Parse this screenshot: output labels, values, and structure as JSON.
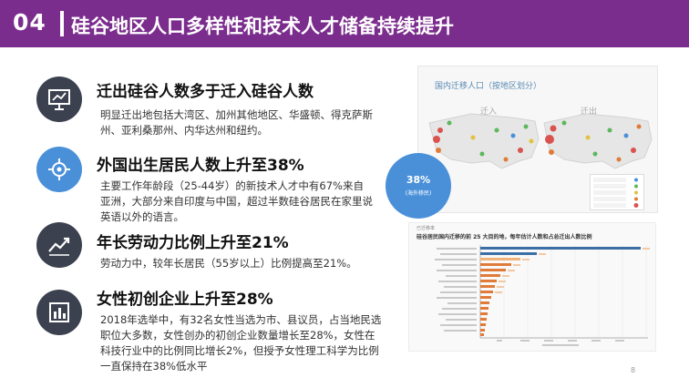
{
  "title": {
    "number": "04",
    "text": "硅谷地区人口多样性和技术人才储备持续提升"
  },
  "points": [
    {
      "icon": "presentation-chart-icon",
      "heading": "迁出硅谷人数多于迁入硅谷人数",
      "body": "明显迁出地包括大湾区、加州其他地区、华盛顿、得克萨斯州、亚利桑那州、内华达州和纽约。"
    },
    {
      "icon": "brain-chip-icon",
      "heading": "外国出生居民人数上升至38%",
      "body": "主要工作年龄段（25-44岁）的新技术人才中有67%来自亚洲，大部分来自印度与中国，超过半数硅谷居民在家里说英语以外的语言。"
    },
    {
      "icon": "trend-line-icon",
      "heading": "年长劳动力比例上升至21%",
      "body": "劳动力中，较年长居民（55岁以上）比例提高至21%。"
    },
    {
      "icon": "bar-chart-icon",
      "heading": "女性初创企业上升至28%",
      "body": "2018年选举中，有32名女性当选为市、县议员，占当地民选职位大多数，女性创办的初创企业数量增长至28%，女性在科技行业中的比例同比增长2%，但授予女性理工科学为比例一直保持在38%低水平"
    }
  ],
  "map_panel": {
    "title": "国内迁移人口（按地区划分）",
    "left_label": "迁入",
    "right_label": "迁出"
  },
  "badge": {
    "value": "38%",
    "label": "(海外移民)"
  },
  "chart_panel": {
    "caption": "已迁移率",
    "title": "硅谷居民国内迁移的前 25 大目的地，每年估计人数和占总迁出人数比例"
  },
  "page_number": "8",
  "colors": {
    "title_bar": "#7b2d8e",
    "dark_icon": "#3c4150",
    "blue_icon": "#4a90d9"
  }
}
